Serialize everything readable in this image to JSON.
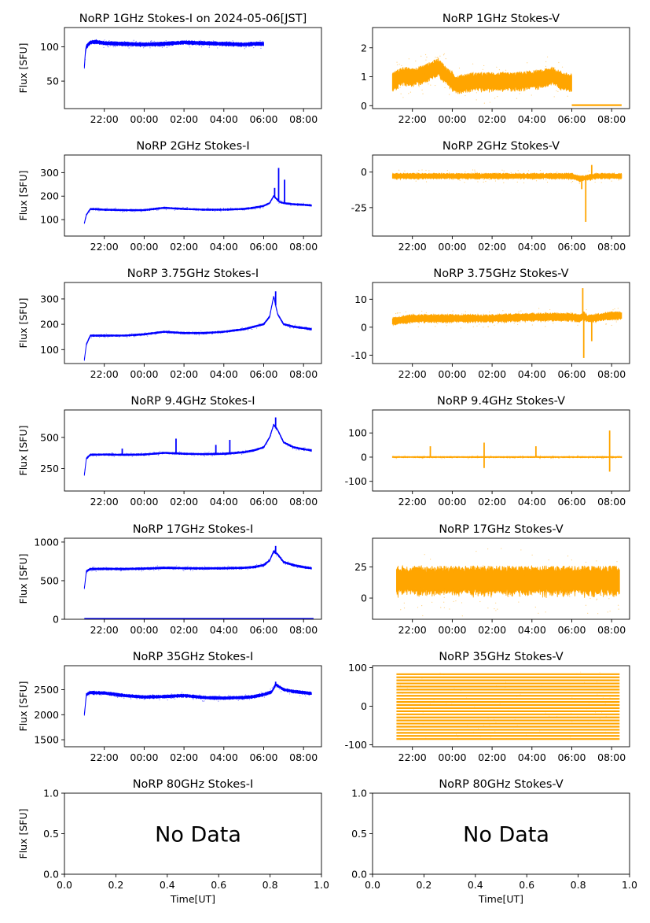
{
  "chart_data": [
    {
      "type": "scatter",
      "title": "NoRP 1GHz Stokes-I on 2024-05-06[JST]",
      "ylabel": "Flux [SFU]",
      "xlabel": "",
      "xticks": [
        "22:00",
        "00:00",
        "02:00",
        "04:00",
        "06:00",
        "08:00"
      ],
      "yticks": [
        50,
        100
      ],
      "ylim": [
        10,
        128
      ],
      "xlim": [
        20.0,
        32.9
      ],
      "color": "#0000ff",
      "no_data": "",
      "series": [
        {
          "x": [
            21.0,
            21.05,
            21.1,
            21.3,
            21.6,
            22,
            23,
            24,
            25,
            26,
            27,
            28,
            29,
            29.5,
            30
          ],
          "y": [
            70,
            92,
            100,
            106,
            107,
            105,
            104,
            103,
            104,
            106,
            105,
            104,
            103,
            104,
            104
          ],
          "noise": 3,
          "spikes": []
        }
      ]
    },
    {
      "type": "scatter",
      "title": "NoRP 1GHz Stokes-V",
      "ylabel": "",
      "xlabel": "",
      "xticks": [
        "22:00",
        "00:00",
        "02:00",
        "04:00",
        "06:00",
        "08:00"
      ],
      "yticks": [
        0,
        1,
        2
      ],
      "ylim": [
        -0.1,
        2.7
      ],
      "xlim": [
        20.0,
        32.9
      ],
      "color": "#ffa500",
      "no_data": "",
      "series": [
        {
          "x": [
            21.0,
            21.5,
            22.0,
            22.5,
            23.0,
            23.3,
            23.7,
            24.2,
            25,
            26,
            27,
            27.8,
            28.5,
            29,
            29.6,
            30.0
          ],
          "y": [
            0.8,
            1.0,
            0.95,
            1.05,
            1.2,
            1.3,
            1.0,
            0.7,
            0.8,
            0.8,
            0.8,
            0.85,
            0.9,
            1.0,
            0.8,
            0.75
          ],
          "noise": 0.35,
          "spikes": []
        },
        {
          "x": [
            30.0,
            32.5
          ],
          "y": [
            0.02,
            0.02
          ],
          "noise": 0.0,
          "spikes": []
        }
      ]
    },
    {
      "type": "scatter",
      "title": "NoRP 2GHz Stokes-I",
      "ylabel": "Flux [SFU]",
      "xlabel": "",
      "xticks": [
        "22:00",
        "00:00",
        "02:00",
        "04:00",
        "06:00",
        "08:00"
      ],
      "yticks": [
        100,
        200,
        300
      ],
      "ylim": [
        30,
        375
      ],
      "xlim": [
        20.0,
        32.9
      ],
      "color": "#0000ff",
      "no_data": "",
      "series": [
        {
          "x": [
            21.0,
            21.1,
            21.3,
            22,
            23,
            24,
            25,
            26,
            27,
            28,
            29,
            29.5,
            30.0,
            30.3,
            30.5,
            30.8,
            31,
            31.5,
            32,
            32.4
          ],
          "y": [
            85,
            120,
            145,
            142,
            140,
            140,
            150,
            145,
            142,
            142,
            145,
            150,
            158,
            170,
            200,
            175,
            170,
            165,
            163,
            160
          ],
          "noise": 4,
          "spikes": [
            [
              30.55,
              235
            ],
            [
              30.75,
              320
            ],
            [
              31.05,
              270
            ]
          ]
        }
      ]
    },
    {
      "type": "scatter",
      "title": "NoRP 2GHz Stokes-V",
      "ylabel": "",
      "xlabel": "",
      "xticks": [
        "22:00",
        "00:00",
        "02:00",
        "04:00",
        "06:00",
        "08:00"
      ],
      "yticks": [
        -25,
        0
      ],
      "ylim": [
        -45,
        12
      ],
      "xlim": [
        20.0,
        32.9
      ],
      "color": "#ffa500",
      "no_data": "",
      "series": [
        {
          "x": [
            21.0,
            22,
            24,
            26,
            28,
            30,
            30.4,
            30.8,
            31.2,
            32.5
          ],
          "y": [
            -3,
            -3,
            -3,
            -3,
            -3,
            -3,
            -5,
            -4,
            -3,
            -3
          ],
          "noise": 2.2,
          "spikes": [
            [
              30.7,
              -35
            ],
            [
              31.0,
              5
            ],
            [
              30.5,
              -12
            ]
          ]
        }
      ]
    },
    {
      "type": "scatter",
      "title": "NoRP 3.75GHz Stokes-I",
      "ylabel": "Flux [SFU]",
      "xlabel": "",
      "xticks": [
        "22:00",
        "00:00",
        "02:00",
        "04:00",
        "06:00",
        "08:00"
      ],
      "yticks": [
        100,
        200,
        300
      ],
      "ylim": [
        45,
        365
      ],
      "xlim": [
        20.0,
        32.9
      ],
      "color": "#0000ff",
      "no_data": "",
      "series": [
        {
          "x": [
            21.0,
            21.1,
            21.3,
            22,
            23,
            24,
            25,
            26,
            27,
            28,
            29,
            29.5,
            30,
            30.3,
            30.5,
            30.7,
            31,
            31.5,
            32,
            32.4
          ],
          "y": [
            60,
            120,
            155,
            155,
            155,
            160,
            170,
            165,
            165,
            170,
            180,
            190,
            200,
            230,
            310,
            240,
            200,
            190,
            185,
            180
          ],
          "noise": 4,
          "spikes": [
            [
              30.6,
              330
            ]
          ]
        }
      ]
    },
    {
      "type": "scatter",
      "title": "NoRP 3.75GHz Stokes-V",
      "ylabel": "",
      "xlabel": "",
      "xticks": [
        "22:00",
        "00:00",
        "02:00",
        "04:00",
        "06:00",
        "08:00"
      ],
      "yticks": [
        -10,
        0,
        10
      ],
      "ylim": [
        -13,
        16
      ],
      "xlim": [
        20.0,
        32.9
      ],
      "color": "#ffa500",
      "no_data": "",
      "series": [
        {
          "x": [
            21.0,
            22,
            24,
            26,
            28,
            30,
            30.4,
            30.6,
            30.8,
            31,
            32,
            32.5
          ],
          "y": [
            2,
            3,
            3,
            3,
            3.5,
            3.5,
            3,
            4,
            3,
            3,
            4,
            4
          ],
          "noise": 1.6,
          "spikes": [
            [
              30.55,
              14
            ],
            [
              30.6,
              -11
            ],
            [
              31.0,
              -5
            ]
          ]
        }
      ]
    },
    {
      "type": "scatter",
      "title": "NoRP 9.4GHz Stokes-I",
      "ylabel": "Flux [SFU]",
      "xlabel": "",
      "xticks": [
        "22:00",
        "00:00",
        "02:00",
        "04:00",
        "06:00",
        "08:00"
      ],
      "yticks": [
        250,
        500
      ],
      "ylim": [
        70,
        720
      ],
      "xlim": [
        20.0,
        32.9
      ],
      "color": "#0000ff",
      "no_data": "",
      "series": [
        {
          "x": [
            21.0,
            21.1,
            21.3,
            22,
            23,
            24,
            25,
            26,
            27,
            28,
            29,
            29.5,
            30,
            30.3,
            30.5,
            30.7,
            31,
            31.5,
            32,
            32.4
          ],
          "y": [
            200,
            330,
            360,
            362,
            360,
            362,
            375,
            368,
            365,
            368,
            380,
            395,
            420,
            500,
            600,
            560,
            460,
            420,
            405,
            395
          ],
          "noise": 8,
          "spikes": [
            [
              22.9,
              410
            ],
            [
              25.6,
              490
            ],
            [
              27.6,
              440
            ],
            [
              28.3,
              480
            ],
            [
              30.6,
              660
            ]
          ]
        }
      ]
    },
    {
      "type": "scatter",
      "title": "NoRP 9.4GHz Stokes-V",
      "ylabel": "",
      "xlabel": "",
      "xticks": [
        "22:00",
        "00:00",
        "02:00",
        "04:00",
        "06:00",
        "08:00"
      ],
      "yticks": [
        -100,
        0,
        100
      ],
      "ylim": [
        -140,
        195
      ],
      "xlim": [
        20.0,
        32.9
      ],
      "color": "#ffa500",
      "no_data": "",
      "series": [
        {
          "x": [
            21.0,
            23,
            25,
            27,
            29,
            31,
            32.5
          ],
          "y": [
            0,
            0,
            0,
            0,
            0,
            0,
            0
          ],
          "noise": 3,
          "spikes": [
            [
              22.9,
              45
            ],
            [
              25.6,
              60
            ],
            [
              25.6,
              -45
            ],
            [
              28.2,
              45
            ],
            [
              31.9,
              110
            ],
            [
              31.9,
              -60
            ]
          ]
        }
      ]
    },
    {
      "type": "scatter",
      "title": "NoRP 17GHz Stokes-I",
      "ylabel": "Flux [SFU]",
      "xlabel": "",
      "xticks": [
        "22:00",
        "00:00",
        "02:00",
        "04:00",
        "06:00",
        "08:00"
      ],
      "yticks": [
        0,
        500,
        1000
      ],
      "ylim": [
        0,
        1050
      ],
      "xlim": [
        20.0,
        32.9
      ],
      "color": "#0000ff",
      "no_data": "",
      "series": [
        {
          "x": [
            21.0,
            21.1,
            21.3,
            22,
            23,
            24,
            25,
            26,
            27,
            28,
            29,
            29.5,
            30,
            30.3,
            30.5,
            30.7,
            31,
            31.5,
            32,
            32.4
          ],
          "y": [
            400,
            620,
            650,
            652,
            650,
            655,
            665,
            660,
            658,
            660,
            665,
            675,
            700,
            760,
            880,
            840,
            740,
            700,
            675,
            660
          ],
          "noise": 15,
          "spikes": [
            [
              30.6,
              950
            ]
          ]
        },
        {
          "x": [
            21.0,
            32.5
          ],
          "y": [
            5,
            5
          ],
          "noise": 0,
          "spikes": []
        }
      ]
    },
    {
      "type": "scatter",
      "title": "NoRP 17GHz Stokes-V",
      "ylabel": "",
      "xlabel": "",
      "xticks": [
        "22:00",
        "00:00",
        "02:00",
        "04:00",
        "06:00",
        "08:00"
      ],
      "yticks": [
        0,
        25
      ],
      "ylim": [
        -17,
        48
      ],
      "xlim": [
        20.0,
        32.9
      ],
      "color": "#ffa500",
      "no_data": "",
      "series": [
        {
          "x": [
            21.2,
            24,
            27,
            30,
            32.4
          ],
          "y": [
            13,
            13,
            13,
            13,
            13
          ],
          "noise": 13,
          "spikes": []
        }
      ]
    },
    {
      "type": "scatter",
      "title": "NoRP 35GHz Stokes-I",
      "ylabel": "Flux [SFU]",
      "xlabel": "",
      "xticks": [
        "22:00",
        "00:00",
        "02:00",
        "04:00",
        "06:00",
        "08:00"
      ],
      "yticks": [
        1500,
        2000,
        2500
      ],
      "ylim": [
        1360,
        2980
      ],
      "xlim": [
        20.0,
        32.9
      ],
      "color": "#0000ff",
      "no_data": "",
      "series": [
        {
          "x": [
            21.0,
            21.1,
            21.3,
            22,
            23,
            24,
            25,
            26,
            27,
            28,
            29,
            29.5,
            30,
            30.4,
            30.6,
            30.8,
            31,
            31.5,
            32,
            32.4
          ],
          "y": [
            2000,
            2400,
            2440,
            2430,
            2380,
            2350,
            2360,
            2380,
            2340,
            2330,
            2340,
            2360,
            2400,
            2450,
            2600,
            2550,
            2500,
            2460,
            2440,
            2420
          ],
          "noise": 35,
          "spikes": [
            [
              30.6,
              2660
            ]
          ]
        }
      ]
    },
    {
      "type": "scatter",
      "title": "NoRP 35GHz Stokes-V",
      "ylabel": "",
      "xlabel": "",
      "xticks": [
        "22:00",
        "00:00",
        "02:00",
        "04:00",
        "06:00",
        "08:00"
      ],
      "yticks": [
        -100,
        0,
        100
      ],
      "ylim": [
        -105,
        105
      ],
      "xlim": [
        20.0,
        32.9
      ],
      "color": "#ffa500",
      "no_data": "",
      "series": [
        {
          "x": [
            21.2,
            32.4
          ],
          "y": [
            0,
            0
          ],
          "noise": 0,
          "bands": [
            -85,
            -77,
            -69,
            -61,
            -53,
            -45,
            -37,
            -29,
            -21,
            -13,
            -5,
            3,
            11,
            19,
            27,
            35,
            43,
            51,
            59,
            67,
            75,
            83
          ],
          "spikes": []
        }
      ]
    },
    {
      "type": "empty",
      "title": "NoRP 80GHz Stokes-I",
      "ylabel": "Flux [SFU]",
      "xlabel": "Time[UT]",
      "xticks": [
        "0.0",
        "0.2",
        "0.4",
        "0.6",
        "0.8",
        "1.0"
      ],
      "yticks": [
        "0.0",
        "0.5",
        "1.0"
      ],
      "ylim": [
        0,
        1
      ],
      "xlim": [
        0,
        1
      ],
      "color": "#0000ff",
      "no_data": "No Data",
      "series": []
    },
    {
      "type": "empty",
      "title": "NoRP 80GHz Stokes-V",
      "ylabel": "",
      "xlabel": "Time[UT]",
      "xticks": [
        "0.0",
        "0.2",
        "0.4",
        "0.6",
        "0.8",
        "1.0"
      ],
      "yticks": [
        "0.0",
        "0.5",
        "1.0"
      ],
      "ylim": [
        0,
        1
      ],
      "xlim": [
        0,
        1
      ],
      "color": "#ffa500",
      "no_data": "No Data",
      "series": []
    }
  ]
}
